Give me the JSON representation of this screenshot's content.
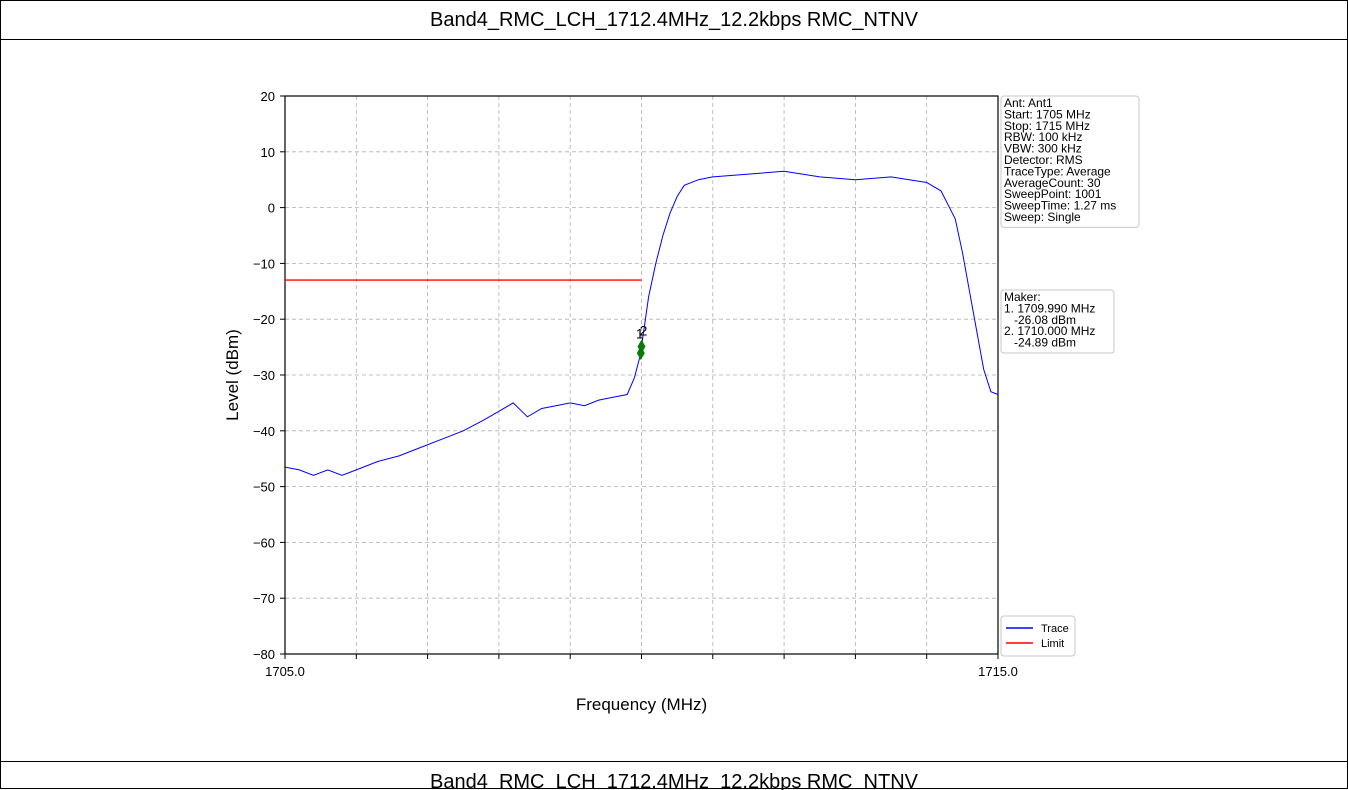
{
  "page": {
    "title": "Band4_RMC_LCH_1712.4MHz_12.2kbps RMC_NTNV",
    "caption": "Band4_RMC_LCH_1712.4MHz_12.2kbps RMC_NTNV"
  },
  "chart_data": {
    "type": "line",
    "xlabel": "Frequency (MHz)",
    "ylabel": "Level (dBm)",
    "xlim": [
      1705.0,
      1715.0
    ],
    "ylim": [
      -80,
      20
    ],
    "xticks": [
      1705.0,
      1715.0
    ],
    "yticks": [
      20,
      10,
      0,
      -10,
      -20,
      -30,
      -40,
      -50,
      -60,
      -70,
      -80
    ],
    "grid": true,
    "series": [
      {
        "name": "Trace",
        "color": "#0000ff",
        "x": [
          1705.0,
          1705.2,
          1705.4,
          1705.6,
          1705.8,
          1706.0,
          1706.3,
          1706.6,
          1706.9,
          1707.2,
          1707.5,
          1707.8,
          1708.0,
          1708.2,
          1708.4,
          1708.6,
          1708.8,
          1709.0,
          1709.2,
          1709.4,
          1709.6,
          1709.8,
          1709.9,
          1709.99,
          1710.0,
          1710.1,
          1710.2,
          1710.3,
          1710.4,
          1710.5,
          1710.6,
          1710.8,
          1711.0,
          1711.5,
          1712.0,
          1712.5,
          1713.0,
          1713.5,
          1714.0,
          1714.2,
          1714.4,
          1714.5,
          1714.6,
          1714.7,
          1714.8,
          1714.9,
          1715.0
        ],
        "y": [
          -46.5,
          -47,
          -48,
          -47,
          -48,
          -47,
          -45.5,
          -44.5,
          -43,
          -41.5,
          -40,
          -38,
          -36.5,
          -35,
          -37.5,
          -36,
          -35.5,
          -35,
          -35.5,
          -34.5,
          -34,
          -33.5,
          -30.5,
          -26.08,
          -24.89,
          -16,
          -10,
          -5,
          -1,
          2,
          4,
          5,
          5.5,
          6,
          6.5,
          5.5,
          5,
          5.5,
          4.5,
          3,
          -2,
          -8,
          -15,
          -22,
          -29,
          -33,
          -33.5
        ]
      },
      {
        "name": "Limit",
        "color": "#ff0000",
        "x": [
          1705.0,
          1710.0
        ],
        "y": [
          -13,
          -13
        ]
      }
    ],
    "markers": [
      {
        "label": "1",
        "x": 1709.99,
        "y": -26.08
      },
      {
        "label": "2",
        "x": 1710.0,
        "y": -24.89
      }
    ],
    "info_box": [
      "Ant: Ant1",
      "Start: 1705 MHz",
      "Stop: 1715 MHz",
      "RBW: 100 kHz",
      "VBW: 300 kHz",
      "Detector: RMS",
      "TraceType: Average",
      "AverageCount: 30",
      "SweepPoint: 1001",
      "SweepTime: 1.27 ms",
      "Sweep: Single"
    ],
    "marker_box": [
      "Maker:",
      "1. 1709.990 MHz",
      "   -26.08 dBm",
      "2. 1710.000 MHz",
      "   -24.89 dBm"
    ],
    "legend": [
      "Trace",
      "Limit"
    ],
    "legend_position": "lower-right outside"
  }
}
